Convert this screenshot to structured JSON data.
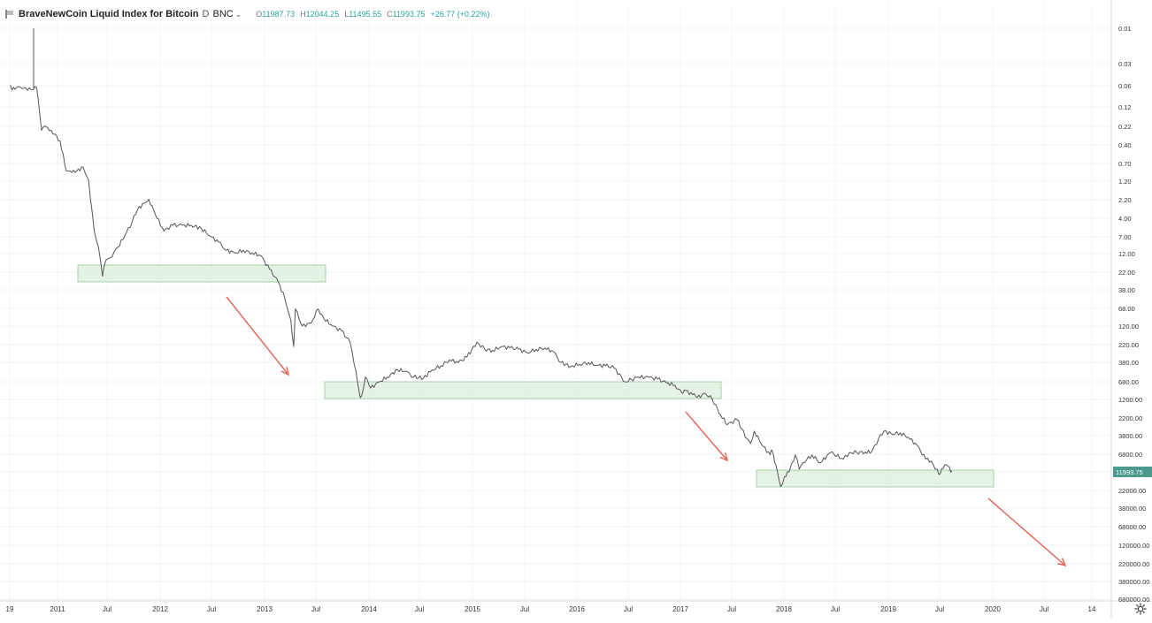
{
  "legend": {
    "title": "BraveNewCoin Liquid Index for Bitcoin",
    "interval": "D",
    "exchange": "BNC",
    "o_label": "O",
    "o_value": "11987.73",
    "h_label": "H",
    "h_value": "12044.25",
    "l_label": "L",
    "l_value": "11495.55",
    "c_label": "C",
    "c_value": "11993.75",
    "change": "+26.77 (+0.22%)"
  },
  "colors": {
    "price_line": "#555555",
    "zone_fill": "#dcefdc",
    "zone_stroke": "#a8d0a8",
    "arrow": "#e06c5c",
    "grid": "#f1f3f6",
    "axis_text": "#333333",
    "last_price_bg": "#4a9b8e"
  },
  "chart_data": {
    "type": "line",
    "title": "BraveNewCoin Liquid Index for Bitcoin",
    "scale": "log, inverted",
    "x_ticks": [
      "19",
      "2011",
      "Jul",
      "2012",
      "Jul",
      "2013",
      "Jul",
      "2014",
      "Jul",
      "2015",
      "Jul",
      "2016",
      "Jul",
      "2017",
      "Jul",
      "2018",
      "Jul",
      "2019",
      "Jul",
      "2020",
      "Jul",
      "14"
    ],
    "y_ticks": [
      "0.01",
      "0.03",
      "0.06",
      "0.12",
      "0.22",
      "0.40",
      "0.70",
      "1.20",
      "2.20",
      "4.00",
      "7.00",
      "12.00",
      "22.00",
      "38.00",
      "68.00",
      "120.00",
      "220.00",
      "380.00",
      "680.00",
      "1200.00",
      "2200.00",
      "3800.00",
      "6800.00",
      "11993.75",
      "22000.00",
      "38000.00",
      "68000.00",
      "120000.00",
      "220000.00",
      "380000.00",
      "680000.00"
    ],
    "last_price": "11993.75",
    "x": [
      "2010-07-19",
      "2010-07-25",
      "2010-08-10",
      "2010-08-25",
      "2010-09-10",
      "2010-10-01",
      "2010-10-20",
      "2010-11-06",
      "2010-11-20",
      "2010-12-10",
      "2011-01-10",
      "2011-02-01",
      "2011-02-20",
      "2011-03-10",
      "2011-04-01",
      "2011-04-20",
      "2011-05-10",
      "2011-05-25",
      "2011-06-08",
      "2011-06-20",
      "2011-07-05",
      "2011-08-01",
      "2011-08-25",
      "2011-09-20",
      "2011-10-10",
      "2011-11-01",
      "2011-11-18",
      "2011-12-10",
      "2012-01-10",
      "2012-02-10",
      "2012-03-15",
      "2012-04-15",
      "2012-05-20",
      "2012-06-20",
      "2012-07-20",
      "2012-08-16",
      "2012-09-15",
      "2012-10-15",
      "2012-11-15",
      "2012-12-15",
      "2013-01-15",
      "2013-02-15",
      "2013-03-10",
      "2013-03-31",
      "2013-04-10",
      "2013-04-16",
      "2013-05-10",
      "2013-06-10",
      "2013-07-05",
      "2013-07-25",
      "2013-08-25",
      "2013-09-25",
      "2013-10-25",
      "2013-11-15",
      "2013-11-30",
      "2013-12-10",
      "2013-12-18",
      "2014-01-05",
      "2014-02-05",
      "2014-03-05",
      "2014-04-10",
      "2014-05-10",
      "2014-06-05",
      "2014-07-10",
      "2014-08-10",
      "2014-09-10",
      "2014-10-10",
      "2014-11-10",
      "2014-12-10",
      "2015-01-14",
      "2015-02-10",
      "2015-03-10",
      "2015-04-10",
      "2015-05-10",
      "2015-06-10",
      "2015-07-10",
      "2015-08-10",
      "2015-09-10",
      "2015-10-10",
      "2015-11-05",
      "2015-12-10",
      "2016-01-10",
      "2016-02-10",
      "2016-03-10",
      "2016-04-10",
      "2016-05-10",
      "2016-06-18",
      "2016-07-10",
      "2016-08-03",
      "2016-09-10",
      "2016-10-10",
      "2016-11-10",
      "2016-12-10",
      "2017-01-04",
      "2017-01-12",
      "2017-02-10",
      "2017-03-10",
      "2017-03-25",
      "2017-04-20",
      "2017-05-20",
      "2017-06-12",
      "2017-07-16",
      "2017-08-20",
      "2017-09-02",
      "2017-09-15",
      "2017-10-10",
      "2017-11-10",
      "2017-11-15",
      "2017-12-01",
      "2017-12-17",
      "2017-12-30",
      "2018-01-15",
      "2018-02-06",
      "2018-02-20",
      "2018-03-05",
      "2018-04-06",
      "2018-05-05",
      "2018-06-10",
      "2018-07-25",
      "2018-08-15",
      "2018-09-10",
      "2018-10-10",
      "2018-11-01",
      "2018-11-25",
      "2018-12-15",
      "2019-01-10",
      "2019-02-10",
      "2019-03-10",
      "2019-04-10",
      "2019-05-10",
      "2019-05-30",
      "2019-06-26",
      "2019-07-05",
      "2019-07-17",
      "2019-07-28",
      "2019-08-06",
      "2019-08-10"
    ],
    "y": [
      0.06,
      0.07,
      0.065,
      0.065,
      0.065,
      0.07,
      0.065,
      0.25,
      0.22,
      0.25,
      0.35,
      0.9,
      0.95,
      0.9,
      0.8,
      1.2,
      6.0,
      10.0,
      25.0,
      15.0,
      14.0,
      10.0,
      7.0,
      4.5,
      3.0,
      2.5,
      2.2,
      3.5,
      6.0,
      5.0,
      5.0,
      5.0,
      5.5,
      7.0,
      8.5,
      11.0,
      12.0,
      11.0,
      12.0,
      13.0,
      20.0,
      30.0,
      50.0,
      100.0,
      230.0,
      70.0,
      120.0,
      110.0,
      70.0,
      95.0,
      120.0,
      140.0,
      200.0,
      500.0,
      1150.0,
      900.0,
      600.0,
      850.0,
      700.0,
      600.0,
      480.0,
      500.0,
      600.0,
      620.0,
      480.0,
      420.0,
      350.0,
      380.0,
      320.0,
      200.0,
      250.0,
      260.0,
      230.0,
      240.0,
      250.0,
      280.0,
      250.0,
      240.0,
      270.0,
      380.0,
      430.0,
      400.0,
      380.0,
      415.0,
      420.0,
      450.0,
      700.0,
      650.0,
      600.0,
      610.0,
      640.0,
      720.0,
      780.0,
      1000.0,
      900.0,
      1050.0,
      1150.0,
      1000.0,
      1200.0,
      2000.0,
      2700.0,
      2300.0,
      4200.0,
      4900.0,
      3300.0,
      5000.0,
      7000.0,
      6000.0,
      10000.0,
      19000.0,
      14000.0,
      12000.0,
      7000.0,
      11000.0,
      9000.0,
      7000.0,
      9000.0,
      6500.0,
      8000.0,
      6500.0,
      6500.0,
      6400.0,
      6400.0,
      4300.0,
      3300.0,
      3600.0,
      3500.0,
      4000.0,
      5200.0,
      8000.0,
      8500.0,
      13000.0,
      11000.0,
      9500.0,
      10000.0,
      12000.0,
      11993.75
    ]
  }
}
